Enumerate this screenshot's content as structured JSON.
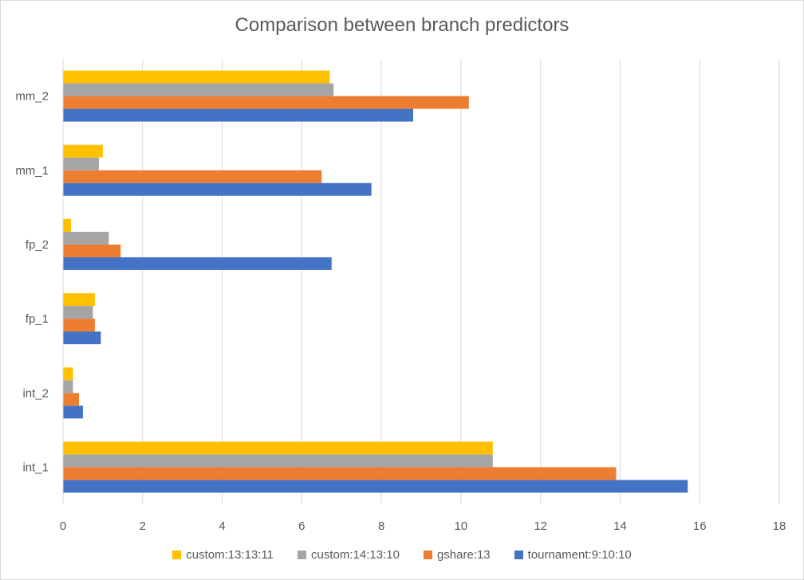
{
  "chart_data": {
    "type": "bar",
    "orientation": "horizontal",
    "title": "Comparison between branch predictors",
    "xlabel": "",
    "ylabel": "",
    "xlim": [
      0,
      18
    ],
    "x_ticks": [
      "0",
      "2",
      "4",
      "6",
      "8",
      "10",
      "12",
      "14",
      "16",
      "18"
    ],
    "grid": true,
    "legend_position": "bottom",
    "categories": [
      "int_1",
      "int_2",
      "fp_1",
      "fp_2",
      "mm_1",
      "mm_2"
    ],
    "series": [
      {
        "name": "tournament:9:10:10",
        "color": "#4472c4",
        "values": [
          15.7,
          0.5,
          0.95,
          6.75,
          7.75,
          8.8
        ]
      },
      {
        "name": "gshare:13",
        "color": "#ed7d31",
        "values": [
          13.9,
          0.4,
          0.8,
          1.45,
          6.5,
          10.2
        ]
      },
      {
        "name": "custom:14:13:10",
        "color": "#a5a5a5",
        "values": [
          10.8,
          0.25,
          0.75,
          1.15,
          0.9,
          6.8
        ]
      },
      {
        "name": "custom:13:13:11",
        "color": "#ffc000",
        "values": [
          10.8,
          0.25,
          0.8,
          0.2,
          1.0,
          6.7
        ]
      }
    ],
    "legend_order": [
      3,
      2,
      1,
      0
    ]
  }
}
